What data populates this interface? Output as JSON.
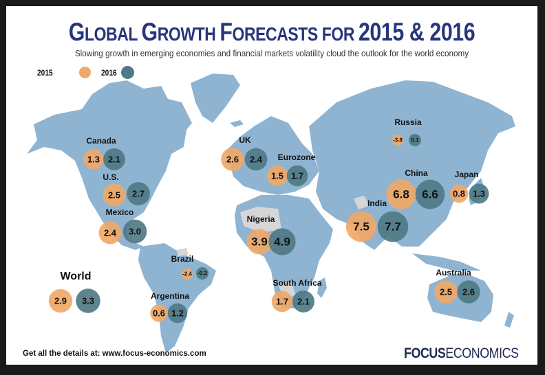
{
  "header": {
    "title_parts": [
      "G",
      "LOBAL ",
      "G",
      "ROWTH ",
      "F",
      "ORECASTS FOR ",
      "2015 & 2016"
    ],
    "title": "Global Growth Forecasts for 2015 & 2016",
    "subtitle": "Slowing growth in emerging economies and financial markets volatility cloud the outlook for the world economy"
  },
  "legend": {
    "items": [
      {
        "label": "2015",
        "color": "#f0a868"
      },
      {
        "label": "2016",
        "color": "#4f7a85"
      }
    ]
  },
  "colors": {
    "land": "#8fb4d2",
    "land_no_data": "#d6d6d6",
    "series_2015": "#f0a868",
    "series_2016": "#4f7a85",
    "title": "#27357c"
  },
  "chart_data": {
    "type": "bubble-map",
    "title": "Global Growth Forecasts for 2015 & 2016",
    "subtitle": "Slowing growth in emerging economies and financial markets volatility cloud the outlook for the world economy",
    "unit": "GDP growth, %",
    "series": [
      {
        "name": "2015",
        "color": "#f0a868"
      },
      {
        "name": "2016",
        "color": "#4f7a85"
      }
    ],
    "regions": [
      {
        "name": "Canada",
        "v2015": 1.3,
        "v2016": 2.1
      },
      {
        "name": "U.S.",
        "v2015": 2.5,
        "v2016": 2.7
      },
      {
        "name": "Mexico",
        "v2015": 2.4,
        "v2016": 3.0
      },
      {
        "name": "UK",
        "v2015": 2.6,
        "v2016": 2.4
      },
      {
        "name": "Eurozone",
        "v2015": 1.5,
        "v2016": 1.7
      },
      {
        "name": "Russia",
        "v2015": -3.8,
        "v2016": 0.1
      },
      {
        "name": "China",
        "v2015": 6.8,
        "v2016": 6.6
      },
      {
        "name": "Japan",
        "v2015": 0.8,
        "v2016": 1.3
      },
      {
        "name": "India",
        "v2015": 7.5,
        "v2016": 7.7
      },
      {
        "name": "Nigeria",
        "v2015": 3.9,
        "v2016": 4.9
      },
      {
        "name": "Brazil",
        "v2015": -2.4,
        "v2016": -0.3
      },
      {
        "name": "Argentina",
        "v2015": 0.6,
        "v2016": 1.2
      },
      {
        "name": "South Africa",
        "v2015": 1.7,
        "v2016": 2.1
      },
      {
        "name": "Australia",
        "v2015": 2.5,
        "v2016": 2.6
      },
      {
        "name": "World",
        "v2015": 2.9,
        "v2016": 3.3
      }
    ]
  },
  "footer": {
    "text": "Get all the details at: www.focus-economics.com",
    "logo_bold": "FOCUS",
    "logo_light": "ECONOMICS"
  }
}
